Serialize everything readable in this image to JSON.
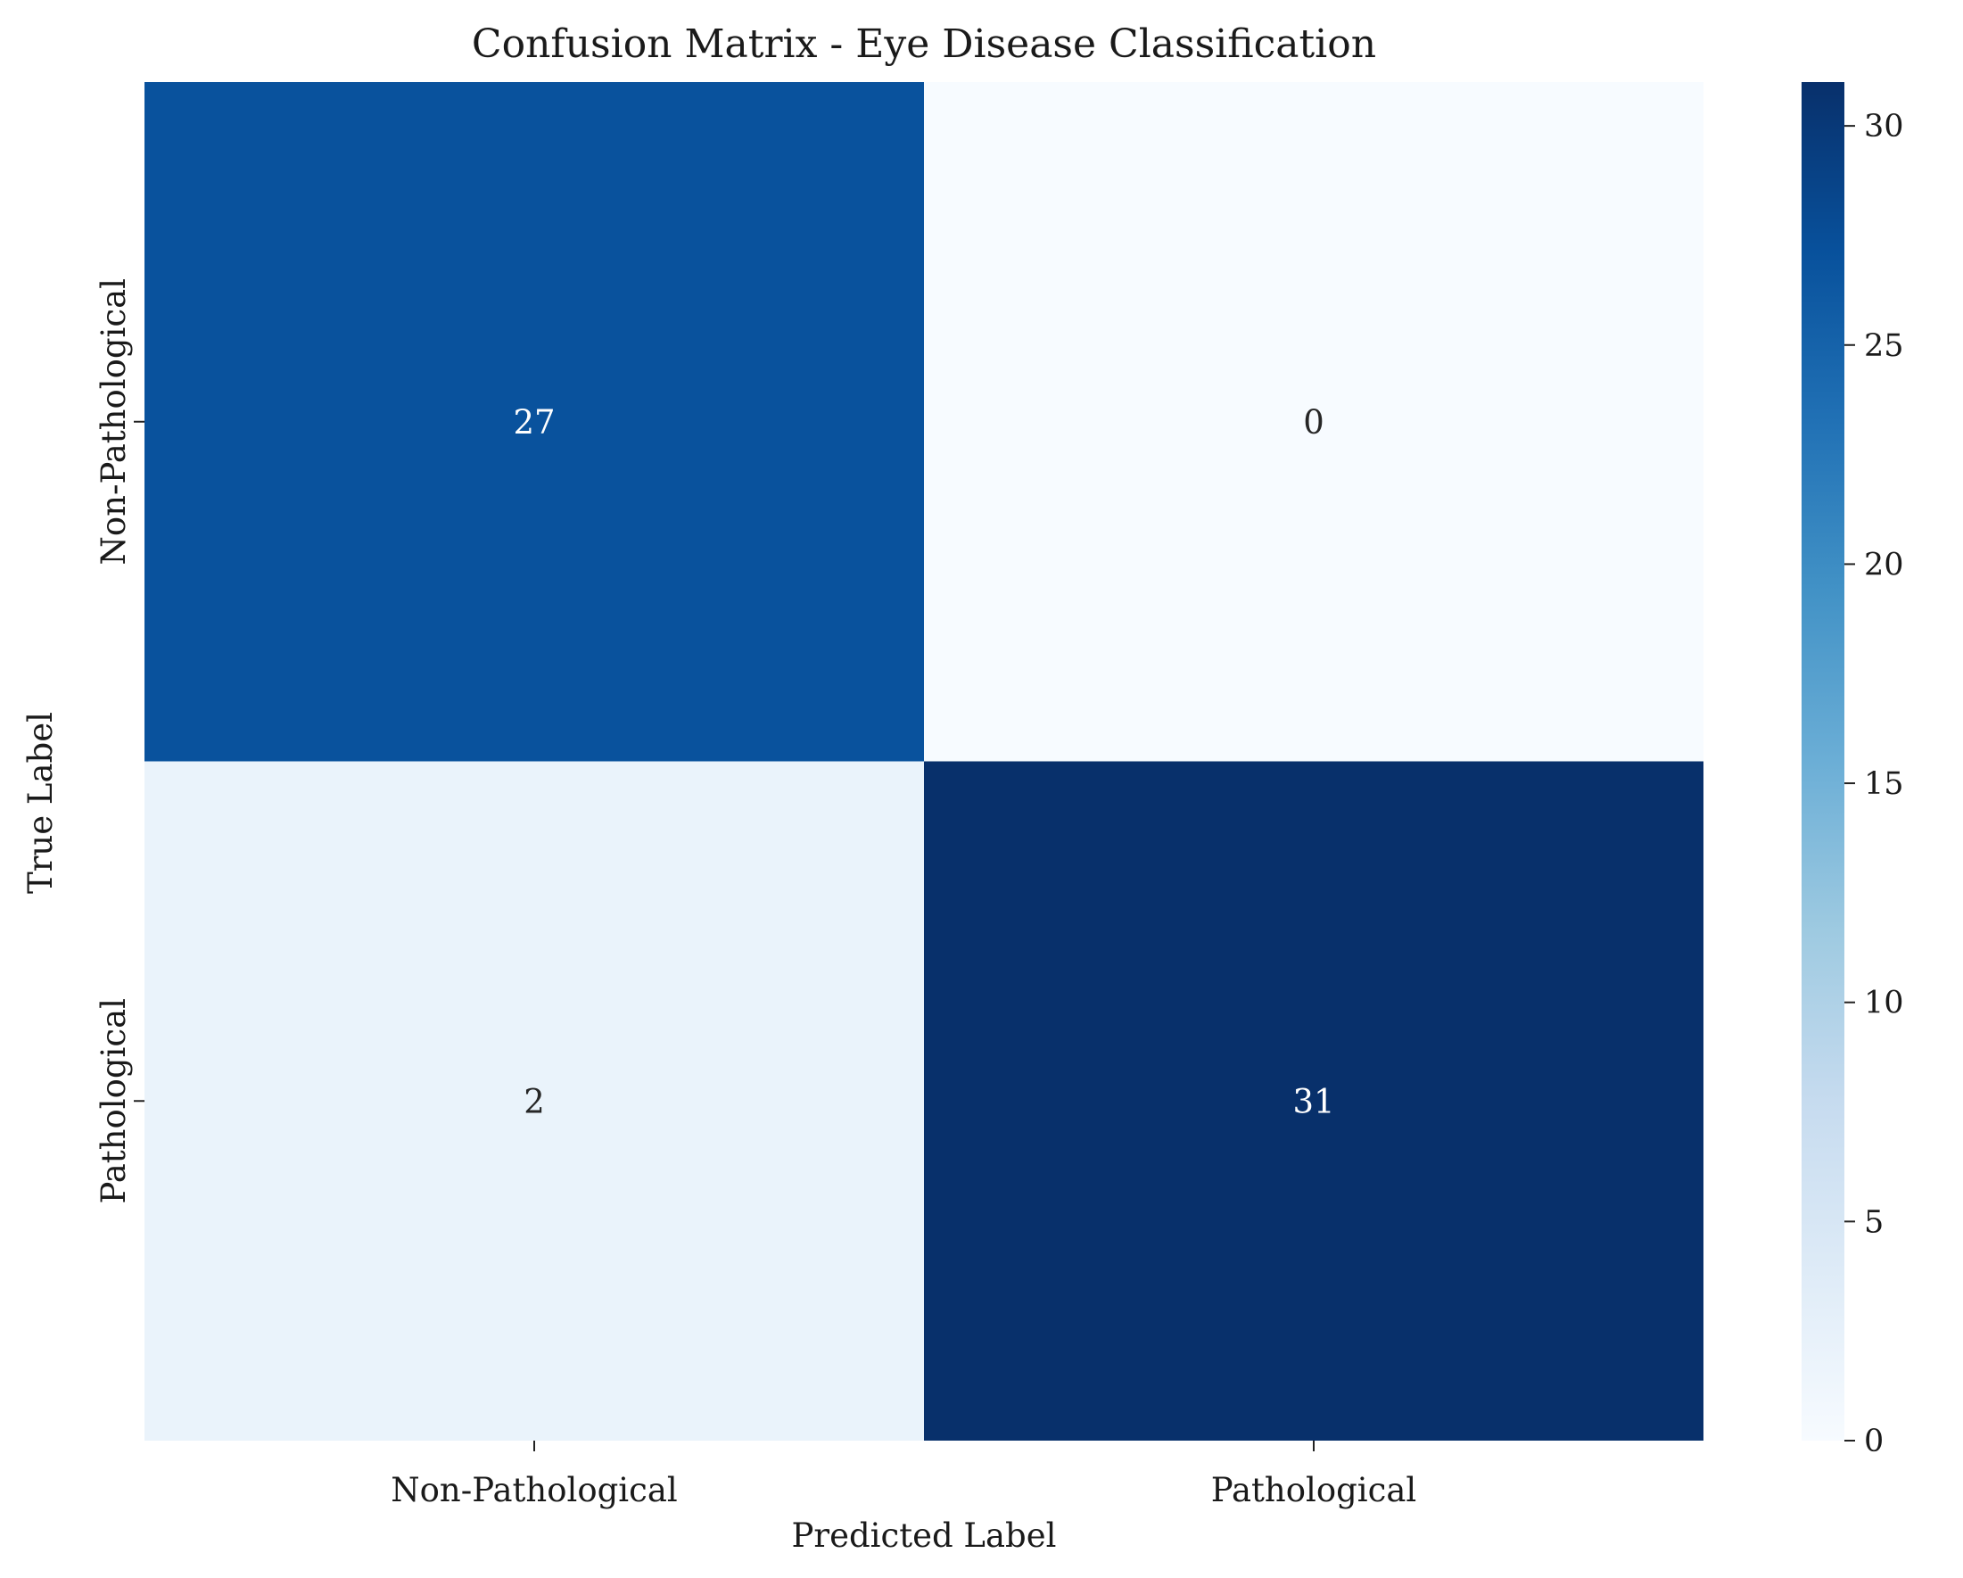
{
  "chart_data": {
    "type": "heatmap",
    "title": "Confusion Matrix - Eye Disease Classification",
    "xlabel": "Predicted Label",
    "ylabel": "True Label",
    "x_categories": [
      "Non-Pathological",
      "Pathological"
    ],
    "y_categories": [
      "Non-Pathological",
      "Pathological"
    ],
    "values": [
      [
        27,
        0
      ],
      [
        2,
        31
      ]
    ],
    "colorbar": {
      "range": [
        0,
        31
      ],
      "ticks": [
        0,
        5,
        10,
        15,
        20,
        25,
        30
      ],
      "tick_labels": [
        "0",
        "5",
        "10",
        "15",
        "20",
        "25",
        "30"
      ]
    },
    "colormap": "Blues",
    "colors": {
      "low": "#f7fbff",
      "high": "#08306b",
      "text_on_dark": "#ffffff",
      "text_on_light": "#262626"
    }
  }
}
